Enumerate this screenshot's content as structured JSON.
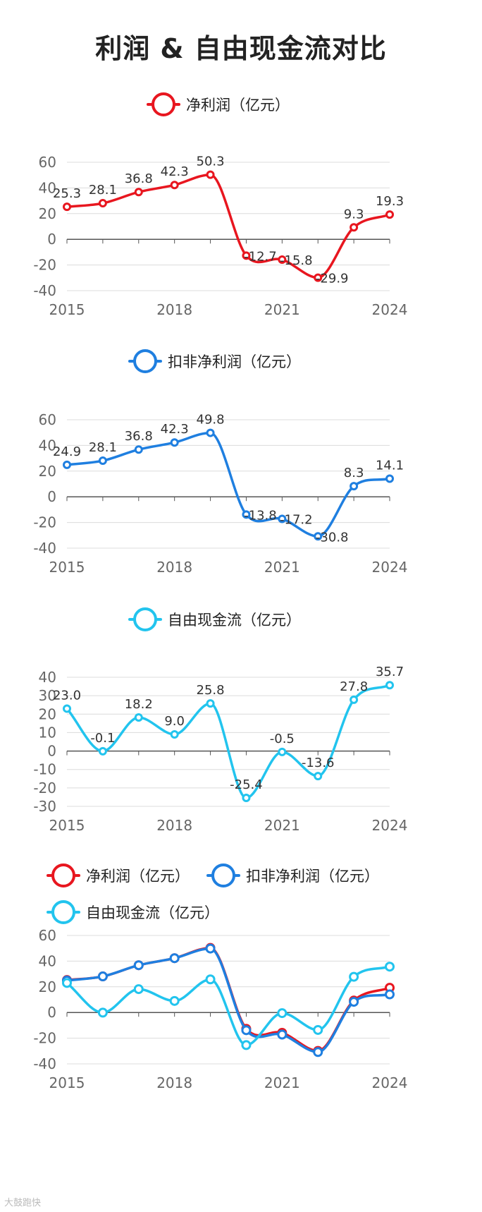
{
  "title": "利润 & 自由现金流对比",
  "watermark": "大鼓跑快",
  "colors": {
    "net_profit": "#e8161f",
    "deducted_profit": "#1f7fe0",
    "free_cash_flow": "#22c4ee",
    "grid": "#dcdcdc",
    "axis": "#555555",
    "tick_text": "#666666",
    "label_text": "#333333"
  },
  "chart_data": [
    {
      "type": "line",
      "title": "",
      "series": [
        {
          "name": "净利润（亿元）",
          "color": "#e8161f",
          "values": [
            25.3,
            28.1,
            36.8,
            42.3,
            50.3,
            -12.7,
            -15.8,
            -29.9,
            9.3,
            19.3
          ]
        }
      ],
      "x": [
        2015,
        2016,
        2017,
        2018,
        2019,
        2020,
        2021,
        2022,
        2023,
        2024
      ],
      "x_tick_labels": [
        "2015",
        "2018",
        "2021",
        "2024"
      ],
      "x_tick_values": [
        2015,
        2018,
        2021,
        2024
      ],
      "y_ticks": [
        60,
        40,
        20,
        0,
        -20,
        -40
      ],
      "ylim": [
        -40,
        60
      ],
      "legend": "top-center",
      "data_labels": true,
      "grid": true
    },
    {
      "type": "line",
      "title": "",
      "series": [
        {
          "name": "扣非净利润（亿元）",
          "color": "#1f7fe0",
          "values": [
            24.9,
            28.1,
            36.8,
            42.3,
            49.8,
            -13.8,
            -17.2,
            -30.8,
            8.3,
            14.1
          ]
        }
      ],
      "x": [
        2015,
        2016,
        2017,
        2018,
        2019,
        2020,
        2021,
        2022,
        2023,
        2024
      ],
      "x_tick_labels": [
        "2015",
        "2018",
        "2021",
        "2024"
      ],
      "x_tick_values": [
        2015,
        2018,
        2021,
        2024
      ],
      "y_ticks": [
        60,
        40,
        20,
        0,
        -20,
        -40
      ],
      "ylim": [
        -40,
        60
      ],
      "legend": "top-center",
      "data_labels": true,
      "grid": true
    },
    {
      "type": "line",
      "title": "",
      "series": [
        {
          "name": "自由现金流（亿元）",
          "color": "#22c4ee",
          "values": [
            23.0,
            -0.1,
            18.2,
            9.0,
            25.8,
            -25.4,
            -0.5,
            -13.6,
            27.8,
            35.7
          ]
        }
      ],
      "x": [
        2015,
        2016,
        2017,
        2018,
        2019,
        2020,
        2021,
        2022,
        2023,
        2024
      ],
      "x_tick_labels": [
        "2015",
        "2018",
        "2021",
        "2024"
      ],
      "x_tick_values": [
        2015,
        2018,
        2021,
        2024
      ],
      "y_ticks": [
        40,
        30,
        20,
        10,
        0,
        -10,
        -20,
        -30
      ],
      "ylim": [
        -30,
        40
      ],
      "legend": "top-center",
      "data_labels": true,
      "grid": true
    },
    {
      "type": "line",
      "title": "",
      "series": [
        {
          "name": "净利润（亿元）",
          "color": "#e8161f",
          "values": [
            25.3,
            28.1,
            36.8,
            42.3,
            50.3,
            -12.7,
            -15.8,
            -29.9,
            9.3,
            19.3
          ]
        },
        {
          "name": "扣非净利润（亿元）",
          "color": "#1f7fe0",
          "values": [
            24.9,
            28.1,
            36.8,
            42.3,
            49.8,
            -13.8,
            -17.2,
            -30.8,
            8.3,
            14.1
          ]
        },
        {
          "name": "自由现金流（亿元）",
          "color": "#22c4ee",
          "values": [
            23.0,
            -0.1,
            18.2,
            9.0,
            25.8,
            -25.4,
            -0.5,
            -13.6,
            27.8,
            35.7
          ]
        }
      ],
      "x": [
        2015,
        2016,
        2017,
        2018,
        2019,
        2020,
        2021,
        2022,
        2023,
        2024
      ],
      "x_tick_labels": [
        "2015",
        "2018",
        "2021",
        "2024"
      ],
      "x_tick_values": [
        2015,
        2018,
        2021,
        2024
      ],
      "y_ticks": [
        60,
        40,
        20,
        0,
        -20,
        -40
      ],
      "ylim": [
        -40,
        60
      ],
      "legend": "top-left",
      "data_labels": false,
      "grid": true
    }
  ]
}
